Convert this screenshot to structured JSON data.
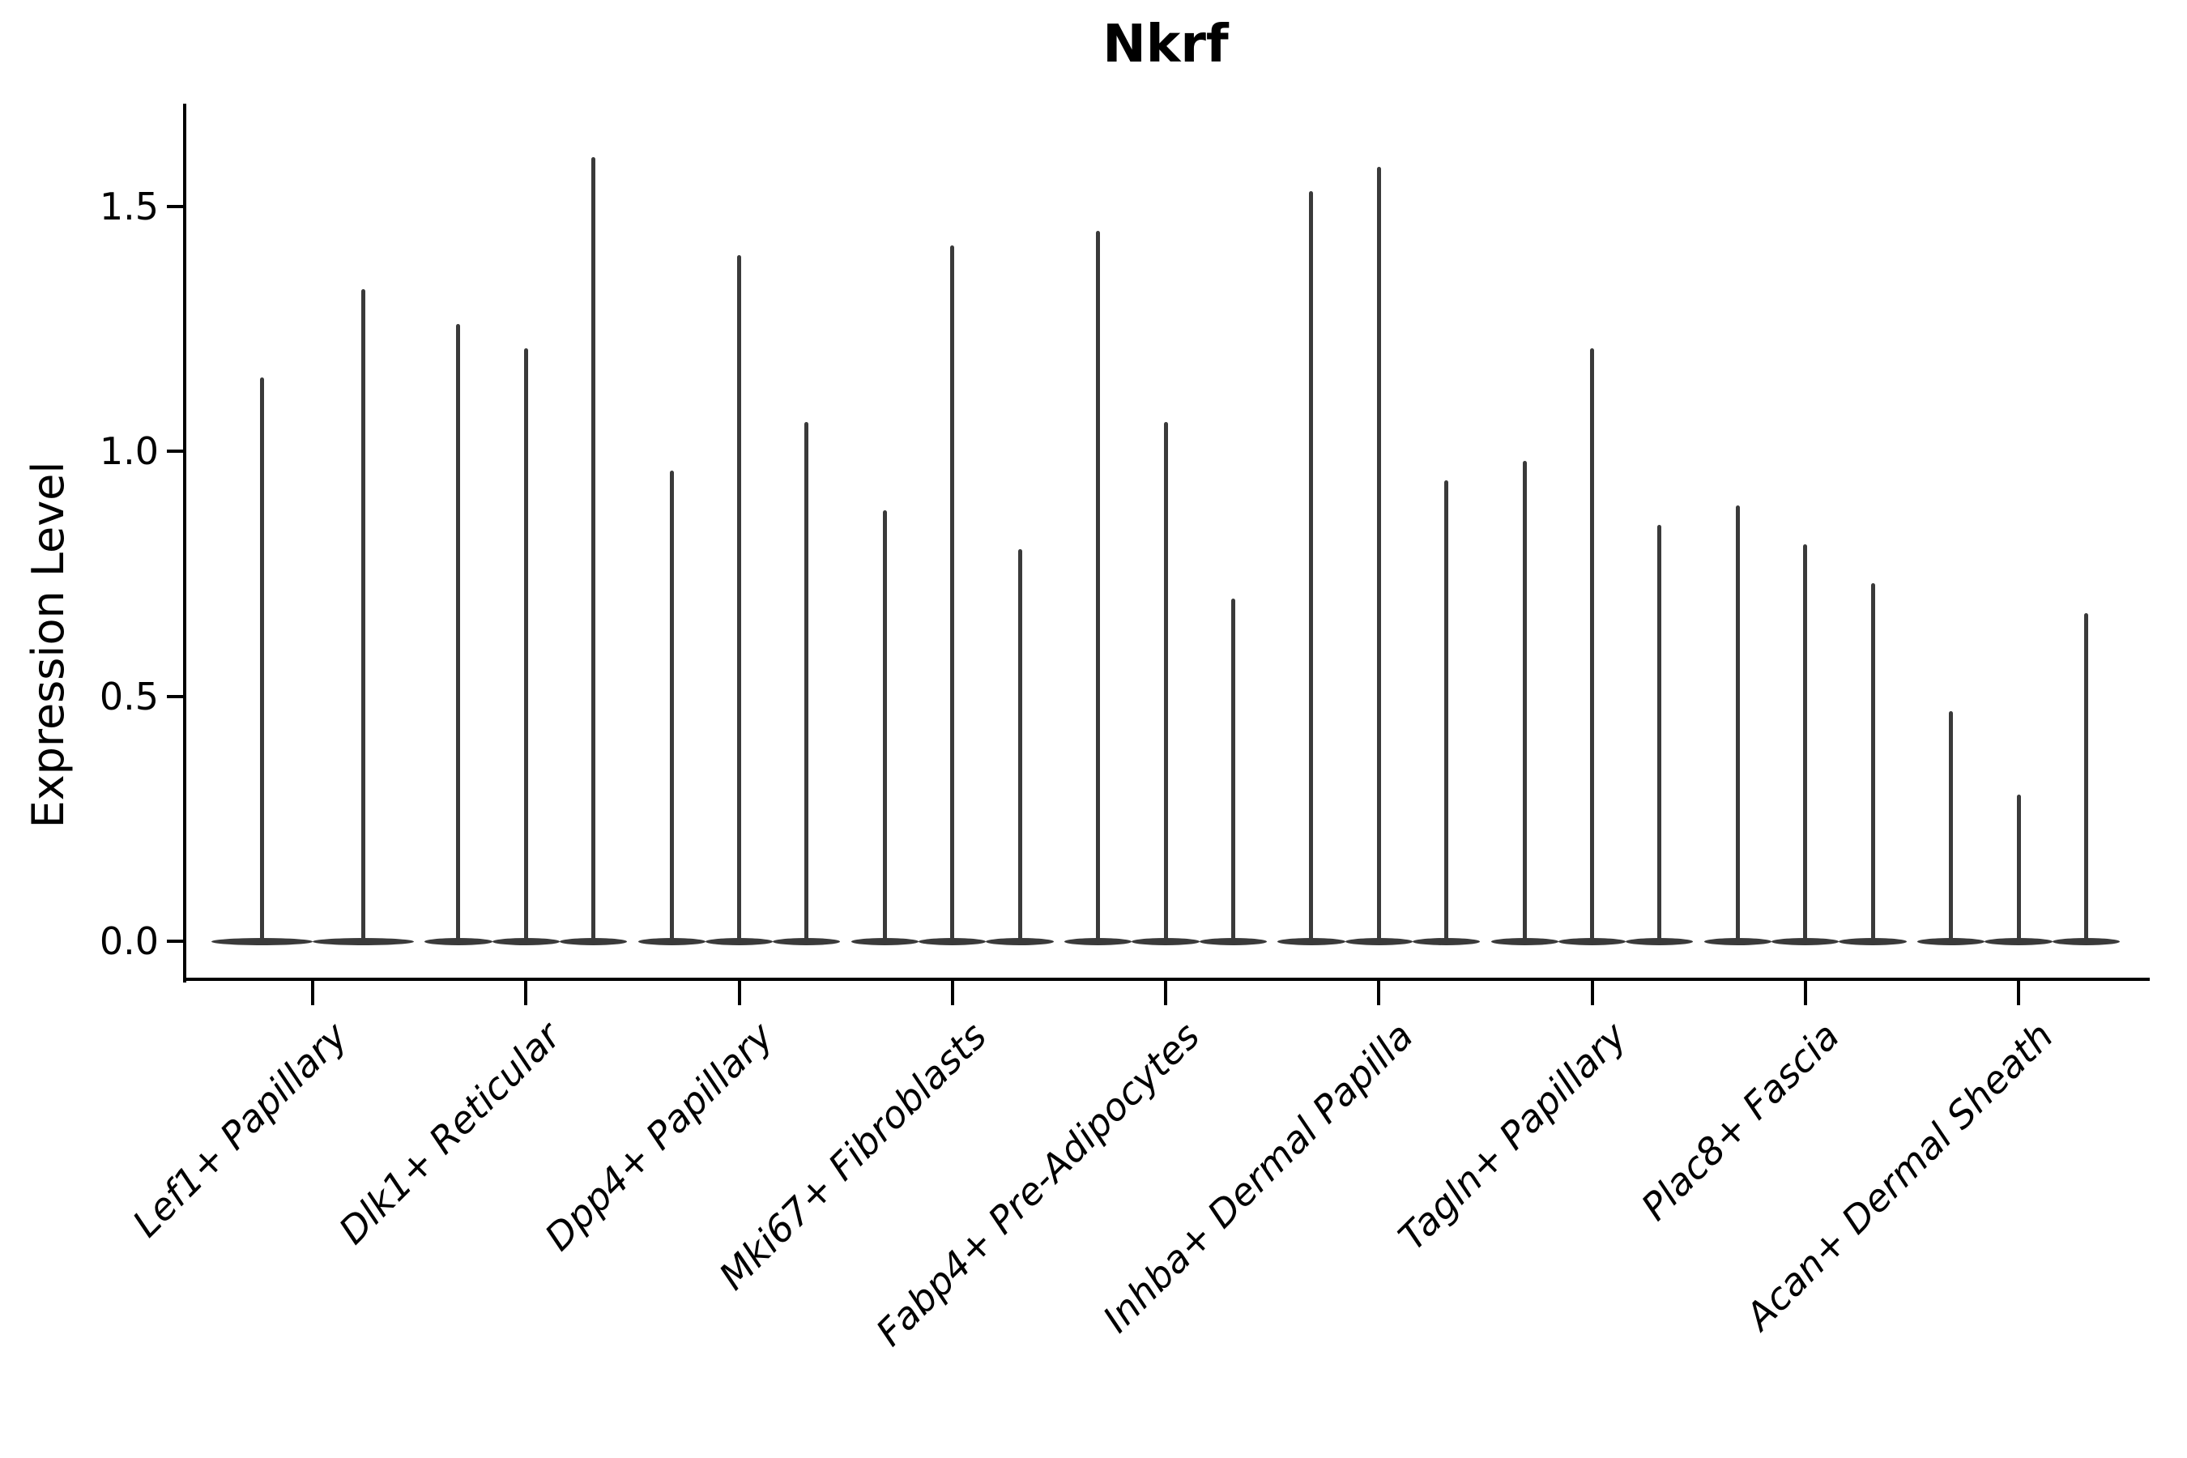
{
  "title": "Nkrf",
  "chart_data": {
    "type": "violin",
    "title": "Nkrf",
    "xlabel": "",
    "ylabel": "Expression Level",
    "ylim": [
      -0.08,
      1.71
    ],
    "yticks": [
      0.0,
      0.5,
      1.0,
      1.5
    ],
    "ytick_labels": [
      "0.0",
      "0.5",
      "1.0",
      "1.5"
    ],
    "grid": false,
    "legend": "none",
    "description": "Needle-thin violins (expression mostly 0) grouped per cell type; values are the maximum expression level reached by each violin within the group.",
    "categories": [
      "Lef1+ Papillary",
      "Dlk1+ Reticular",
      "Dpp4+ Papillary",
      "Mki67+ Fibroblasts",
      "Fabp4+ Pre-Adipocytes",
      "Inhba+ Dermal Papilla",
      "Tagln+ Papillary",
      "Plac8+ Fascia",
      "Acan+ Dermal Sheath"
    ],
    "groups": [
      {
        "category": "Lef1+ Papillary",
        "violin_max": [
          1.15,
          1.33
        ]
      },
      {
        "category": "Dlk1+ Reticular",
        "violin_max": [
          1.26,
          1.21,
          1.6
        ]
      },
      {
        "category": "Dpp4+ Papillary",
        "violin_max": [
          0.96,
          1.4,
          1.06
        ]
      },
      {
        "category": "Mki67+ Fibroblasts",
        "violin_max": [
          0.88,
          1.42,
          0.8
        ]
      },
      {
        "category": "Fabp4+ Pre-Adipocytes",
        "violin_max": [
          1.45,
          1.06,
          0.7
        ]
      },
      {
        "category": "Inhba+ Dermal Papilla",
        "violin_max": [
          1.53,
          1.58,
          0.94
        ]
      },
      {
        "category": "Tagln+ Papillary",
        "violin_max": [
          0.98,
          1.21,
          0.85
        ]
      },
      {
        "category": "Plac8+ Fascia",
        "violin_max": [
          0.89,
          0.81,
          0.73
        ]
      },
      {
        "category": "Acan+ Dermal Sheath",
        "violin_max": [
          0.47,
          0.3,
          0.67
        ]
      }
    ],
    "colors": {
      "violin": "#3a3a3a",
      "axis": "#000000",
      "text": "#000000",
      "background": "#ffffff"
    }
  }
}
